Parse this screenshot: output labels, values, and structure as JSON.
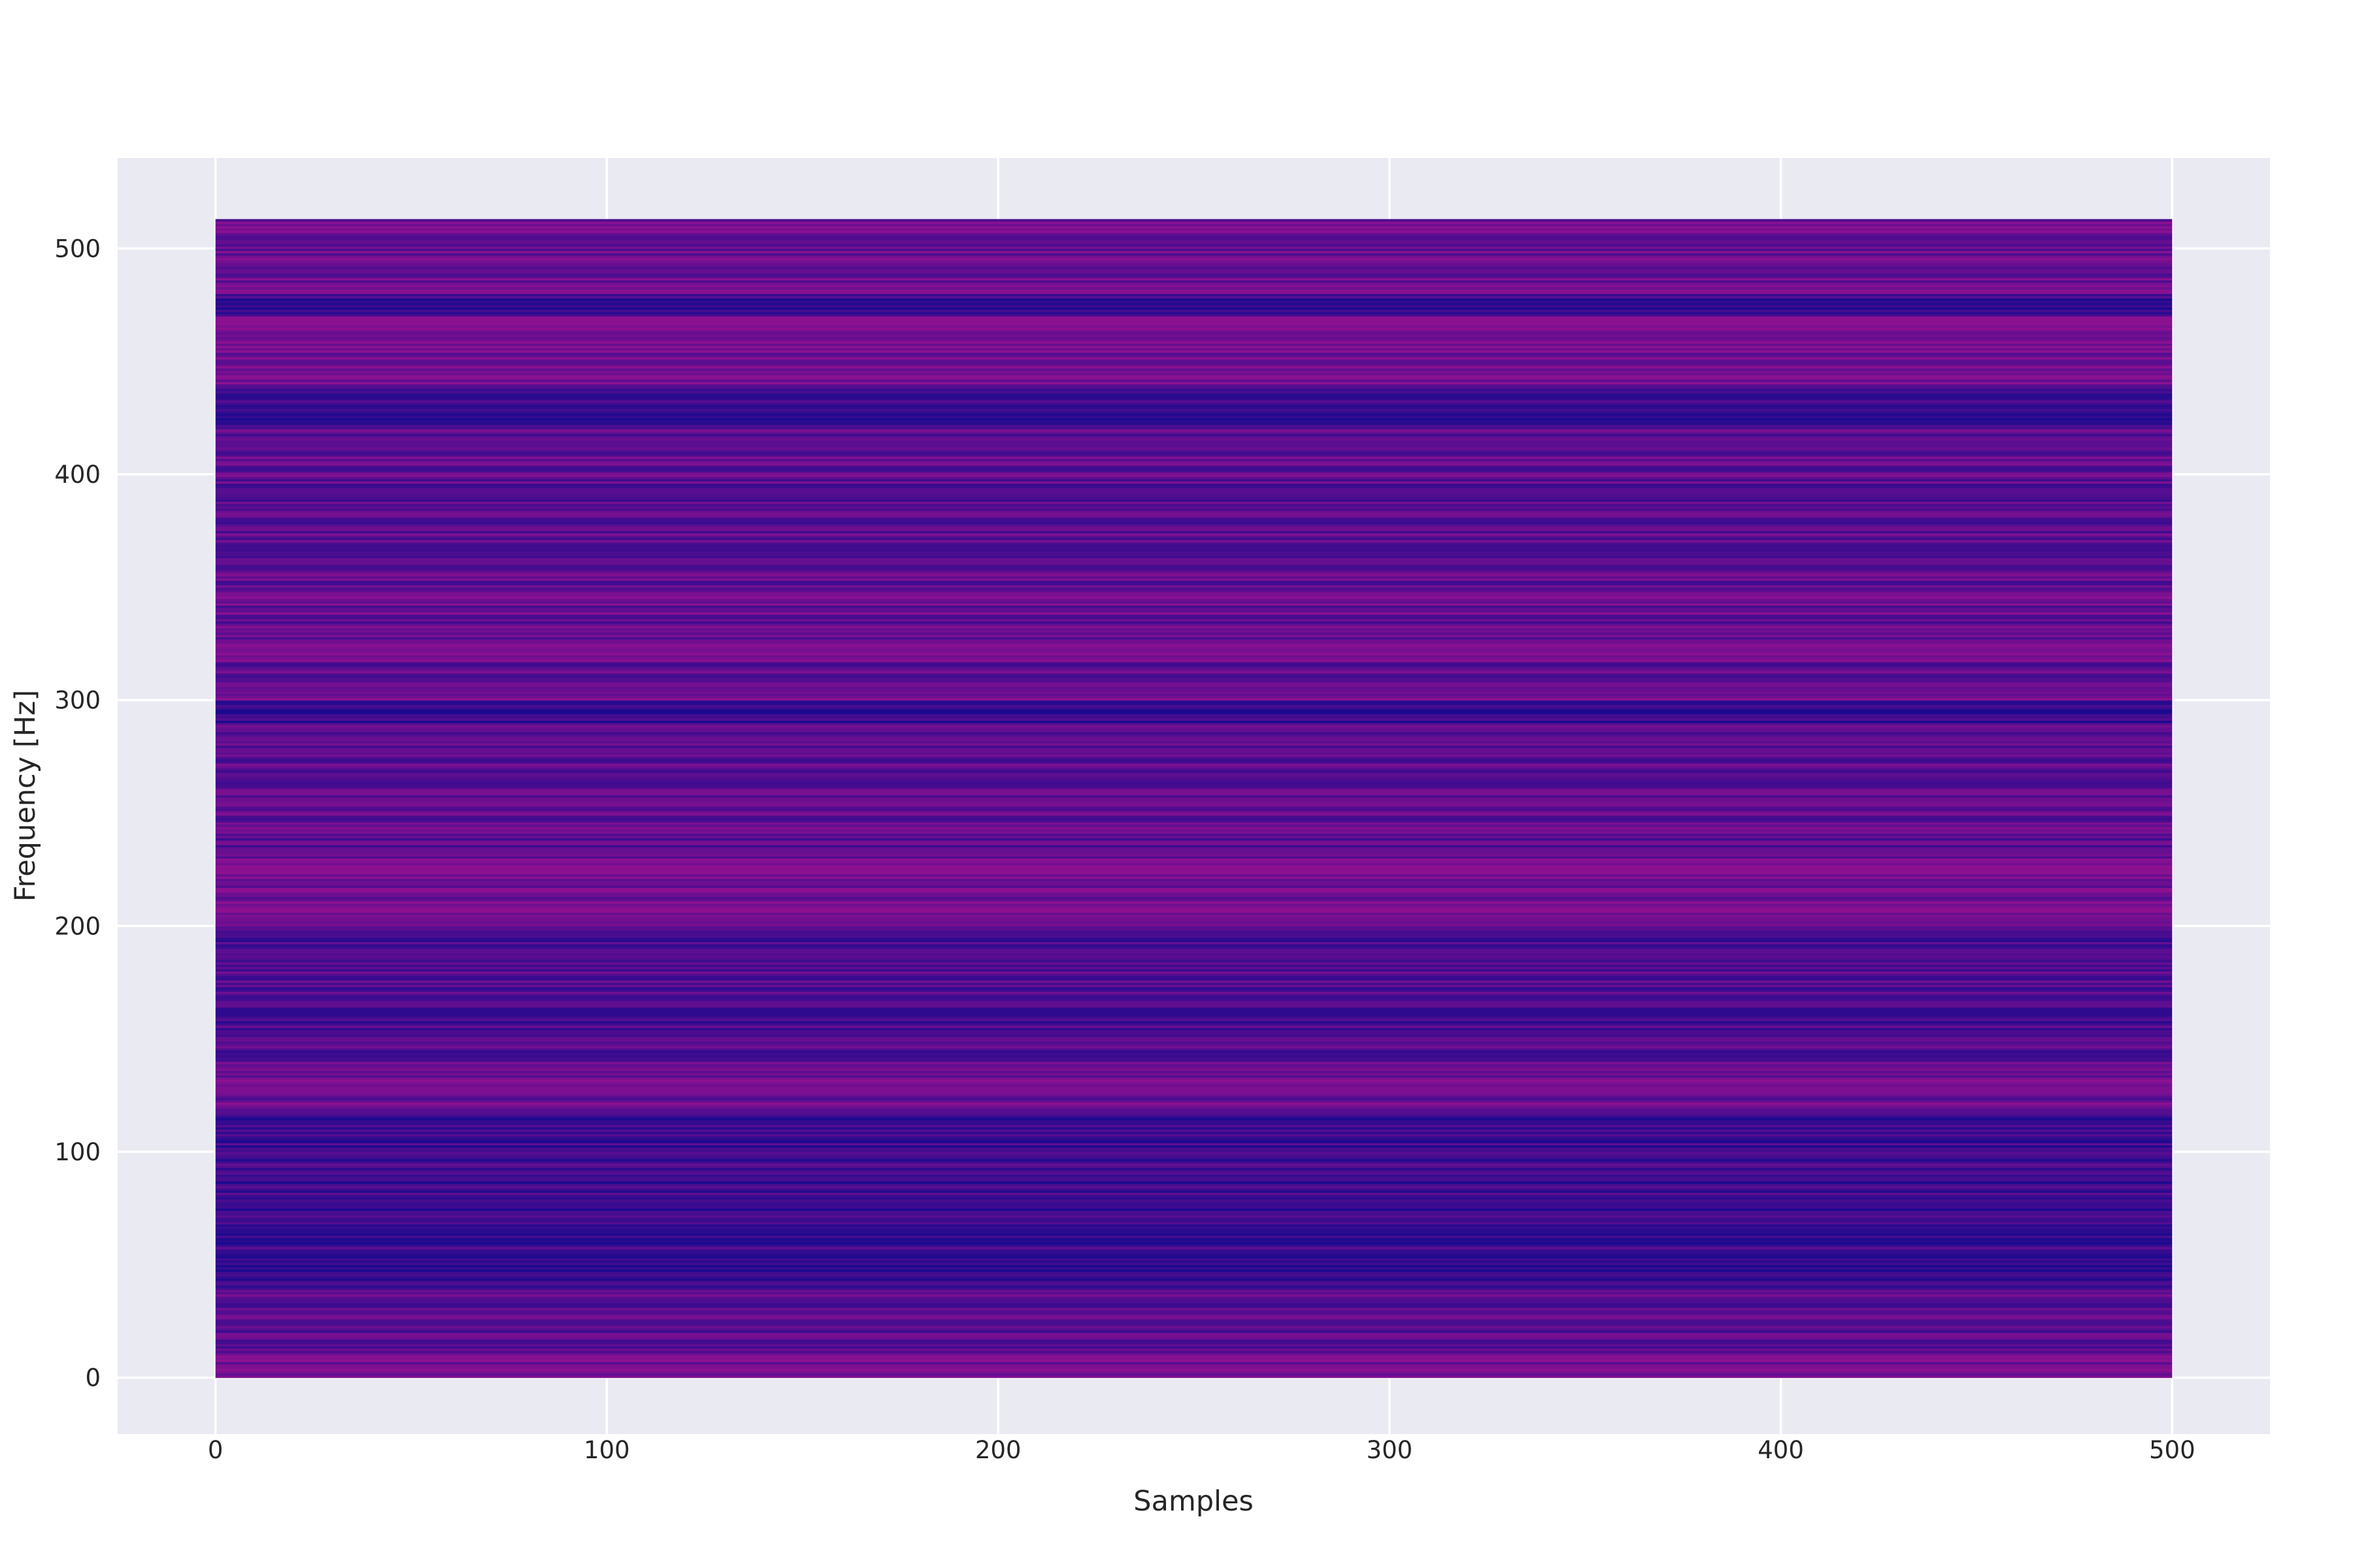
{
  "chart_data": {
    "type": "heatmap",
    "title": "",
    "xlabel": "Samples",
    "ylabel": "Frequency [Hz]",
    "xlim": [
      -25,
      525
    ],
    "ylim": [
      -25,
      540
    ],
    "x_extent": [
      0,
      500
    ],
    "y_extent": [
      0,
      513
    ],
    "x_ticks": [
      0,
      100,
      200,
      300,
      400,
      500
    ],
    "x_tick_labels": [
      "0",
      "100",
      "200",
      "300",
      "400",
      "500"
    ],
    "y_ticks": [
      0,
      100,
      200,
      300,
      400,
      500
    ],
    "y_tick_labels": [
      "0",
      "100",
      "200",
      "300",
      "400",
      "500"
    ],
    "grid": true,
    "colors": {
      "axes_background": "#eaeaf2",
      "grid": "#ffffff",
      "colormap_low": "#1a0a8f",
      "colormap_high": "#8c1190"
    },
    "note_bands": [
      {
        "from": 0,
        "to": 10,
        "level": 0.75
      },
      {
        "from": 10,
        "to": 40,
        "level": 0.55
      },
      {
        "from": 40,
        "to": 55,
        "level": 0.2
      },
      {
        "from": 55,
        "to": 120,
        "level": 0.3
      },
      {
        "from": 120,
        "to": 140,
        "level": 0.75
      },
      {
        "from": 140,
        "to": 200,
        "level": 0.45
      },
      {
        "from": 200,
        "to": 230,
        "level": 0.8
      },
      {
        "from": 230,
        "to": 290,
        "level": 0.6
      },
      {
        "from": 290,
        "to": 300,
        "level": 0.15
      },
      {
        "from": 300,
        "to": 360,
        "level": 0.65
      },
      {
        "from": 360,
        "to": 420,
        "level": 0.6
      },
      {
        "from": 420,
        "to": 440,
        "level": 0.2
      },
      {
        "from": 440,
        "to": 470,
        "level": 0.85
      },
      {
        "from": 470,
        "to": 480,
        "level": 0.25
      },
      {
        "from": 480,
        "to": 513,
        "level": 0.75
      }
    ]
  }
}
